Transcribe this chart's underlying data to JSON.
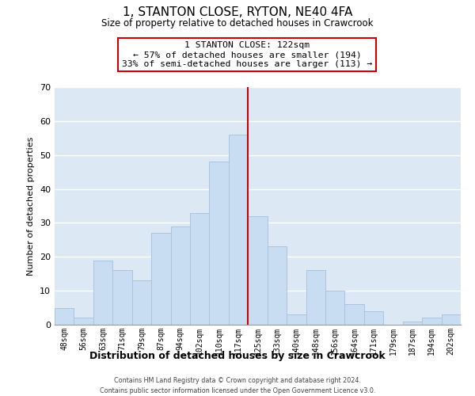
{
  "title": "1, STANTON CLOSE, RYTON, NE40 4FA",
  "subtitle": "Size of property relative to detached houses in Crawcrook",
  "xlabel": "Distribution of detached houses by size in Crawcrook",
  "ylabel": "Number of detached properties",
  "bar_labels": [
    "48sqm",
    "56sqm",
    "63sqm",
    "71sqm",
    "79sqm",
    "87sqm",
    "94sqm",
    "102sqm",
    "110sqm",
    "117sqm",
    "125sqm",
    "133sqm",
    "140sqm",
    "148sqm",
    "156sqm",
    "164sqm",
    "171sqm",
    "179sqm",
    "187sqm",
    "194sqm",
    "202sqm"
  ],
  "bar_heights": [
    5,
    2,
    19,
    16,
    13,
    27,
    29,
    33,
    48,
    56,
    32,
    23,
    3,
    16,
    10,
    6,
    4,
    0,
    1,
    2,
    3
  ],
  "bar_color": "#c8ddf2",
  "bar_edgecolor": "#aac4e0",
  "vline_x": 9.5,
  "vline_color": "#cc0000",
  "ylim": [
    0,
    70
  ],
  "yticks": [
    0,
    10,
    20,
    30,
    40,
    50,
    60,
    70
  ],
  "annotation_title": "1 STANTON CLOSE: 122sqm",
  "annotation_line1": "← 57% of detached houses are smaller (194)",
  "annotation_line2": "33% of semi-detached houses are larger (113) →",
  "annotation_box_facecolor": "#ffffff",
  "annotation_box_edgecolor": "#cc0000",
  "footer_line1": "Contains HM Land Registry data © Crown copyright and database right 2024.",
  "footer_line2": "Contains public sector information licensed under the Open Government Licence v3.0.",
  "background_color": "#ffffff",
  "plot_bg_color": "#dce9f5",
  "grid_color": "#ffffff"
}
